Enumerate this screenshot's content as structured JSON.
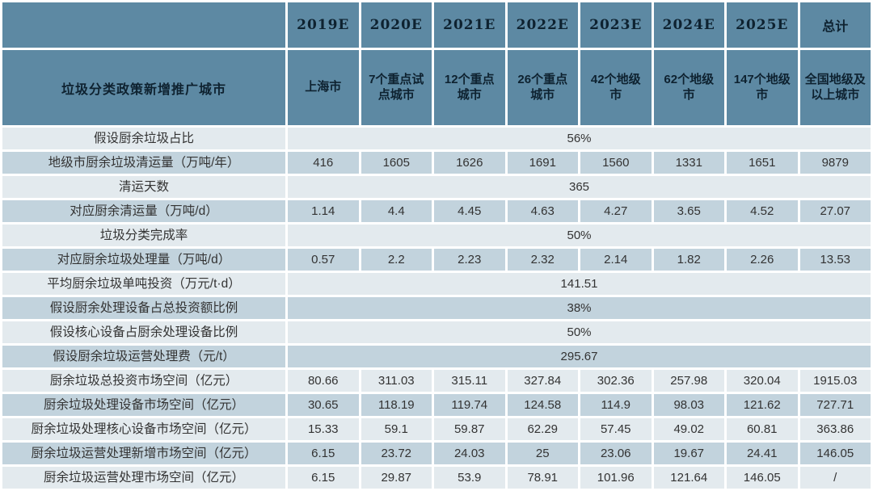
{
  "colors": {
    "header_bg": "#5d89a3",
    "row_light": "#e3eaee",
    "row_dark": "#c2d3dd",
    "grid": "#ffffff",
    "header_text": "#0e2230",
    "body_text": "#333333"
  },
  "chart_data": {
    "type": "table",
    "header_row_1": [
      "",
      "2019E",
      "2020E",
      "2021E",
      "2022E",
      "2023E",
      "2024E",
      "2025E",
      "总计"
    ],
    "header_row_2": [
      "垃圾分类政策新增推广城市",
      "上海市",
      "7个重点试点城市",
      "12个重点城市",
      "26个重点城市",
      "42个地级市",
      "62个地级市",
      "147个地级市",
      "全国地级及以上城市"
    ],
    "rows": [
      {
        "label": "假设厨余垃圾占比",
        "merged": "56%"
      },
      {
        "label": "地级市厨余垃圾清运量（万吨/年）",
        "values": [
          "416",
          "1605",
          "1626",
          "1691",
          "1560",
          "1331",
          "1651",
          "9879"
        ]
      },
      {
        "label": "清运天数",
        "merged": "365"
      },
      {
        "label": "对应厨余清运量（万吨/d）",
        "values": [
          "1.14",
          "4.4",
          "4.45",
          "4.63",
          "4.27",
          "3.65",
          "4.52",
          "27.07"
        ]
      },
      {
        "label": "垃圾分类完成率",
        "merged": "50%"
      },
      {
        "label": "对应厨余垃圾处理量（万吨/d）",
        "values": [
          "0.57",
          "2.2",
          "2.23",
          "2.32",
          "2.14",
          "1.82",
          "2.26",
          "13.53"
        ]
      },
      {
        "label": "平均厨余垃圾单吨投资（万元/t·d）",
        "merged": "141.51"
      },
      {
        "label": "假设厨余处理设备占总投资额比例",
        "merged": "38%"
      },
      {
        "label": "假设核心设备占厨余处理设备比例",
        "merged": "50%"
      },
      {
        "label": "假设厨余垃圾运营处理费（元/t）",
        "merged": "295.67"
      },
      {
        "label": "厨余垃圾总投资市场空间（亿元）",
        "values": [
          "80.66",
          "311.03",
          "315.11",
          "327.84",
          "302.36",
          "257.98",
          "320.04",
          "1915.03"
        ]
      },
      {
        "label": "厨余垃圾处理设备市场空间（亿元）",
        "values": [
          "30.65",
          "118.19",
          "119.74",
          "124.58",
          "114.9",
          "98.03",
          "121.62",
          "727.71"
        ]
      },
      {
        "label": "厨余垃圾处理核心设备市场空间（亿元）",
        "values": [
          "15.33",
          "59.1",
          "59.87",
          "62.29",
          "57.45",
          "49.02",
          "60.81",
          "363.86"
        ]
      },
      {
        "label": "厨余垃圾运营处理新增市场空间（亿元）",
        "values": [
          "6.15",
          "23.72",
          "24.03",
          "25",
          "23.06",
          "19.67",
          "24.41",
          "146.05"
        ]
      },
      {
        "label": "厨余垃圾运营处理市场空间（亿元）",
        "values": [
          "6.15",
          "29.87",
          "53.9",
          "78.91",
          "101.96",
          "121.64",
          "146.05",
          "/"
        ]
      }
    ]
  }
}
